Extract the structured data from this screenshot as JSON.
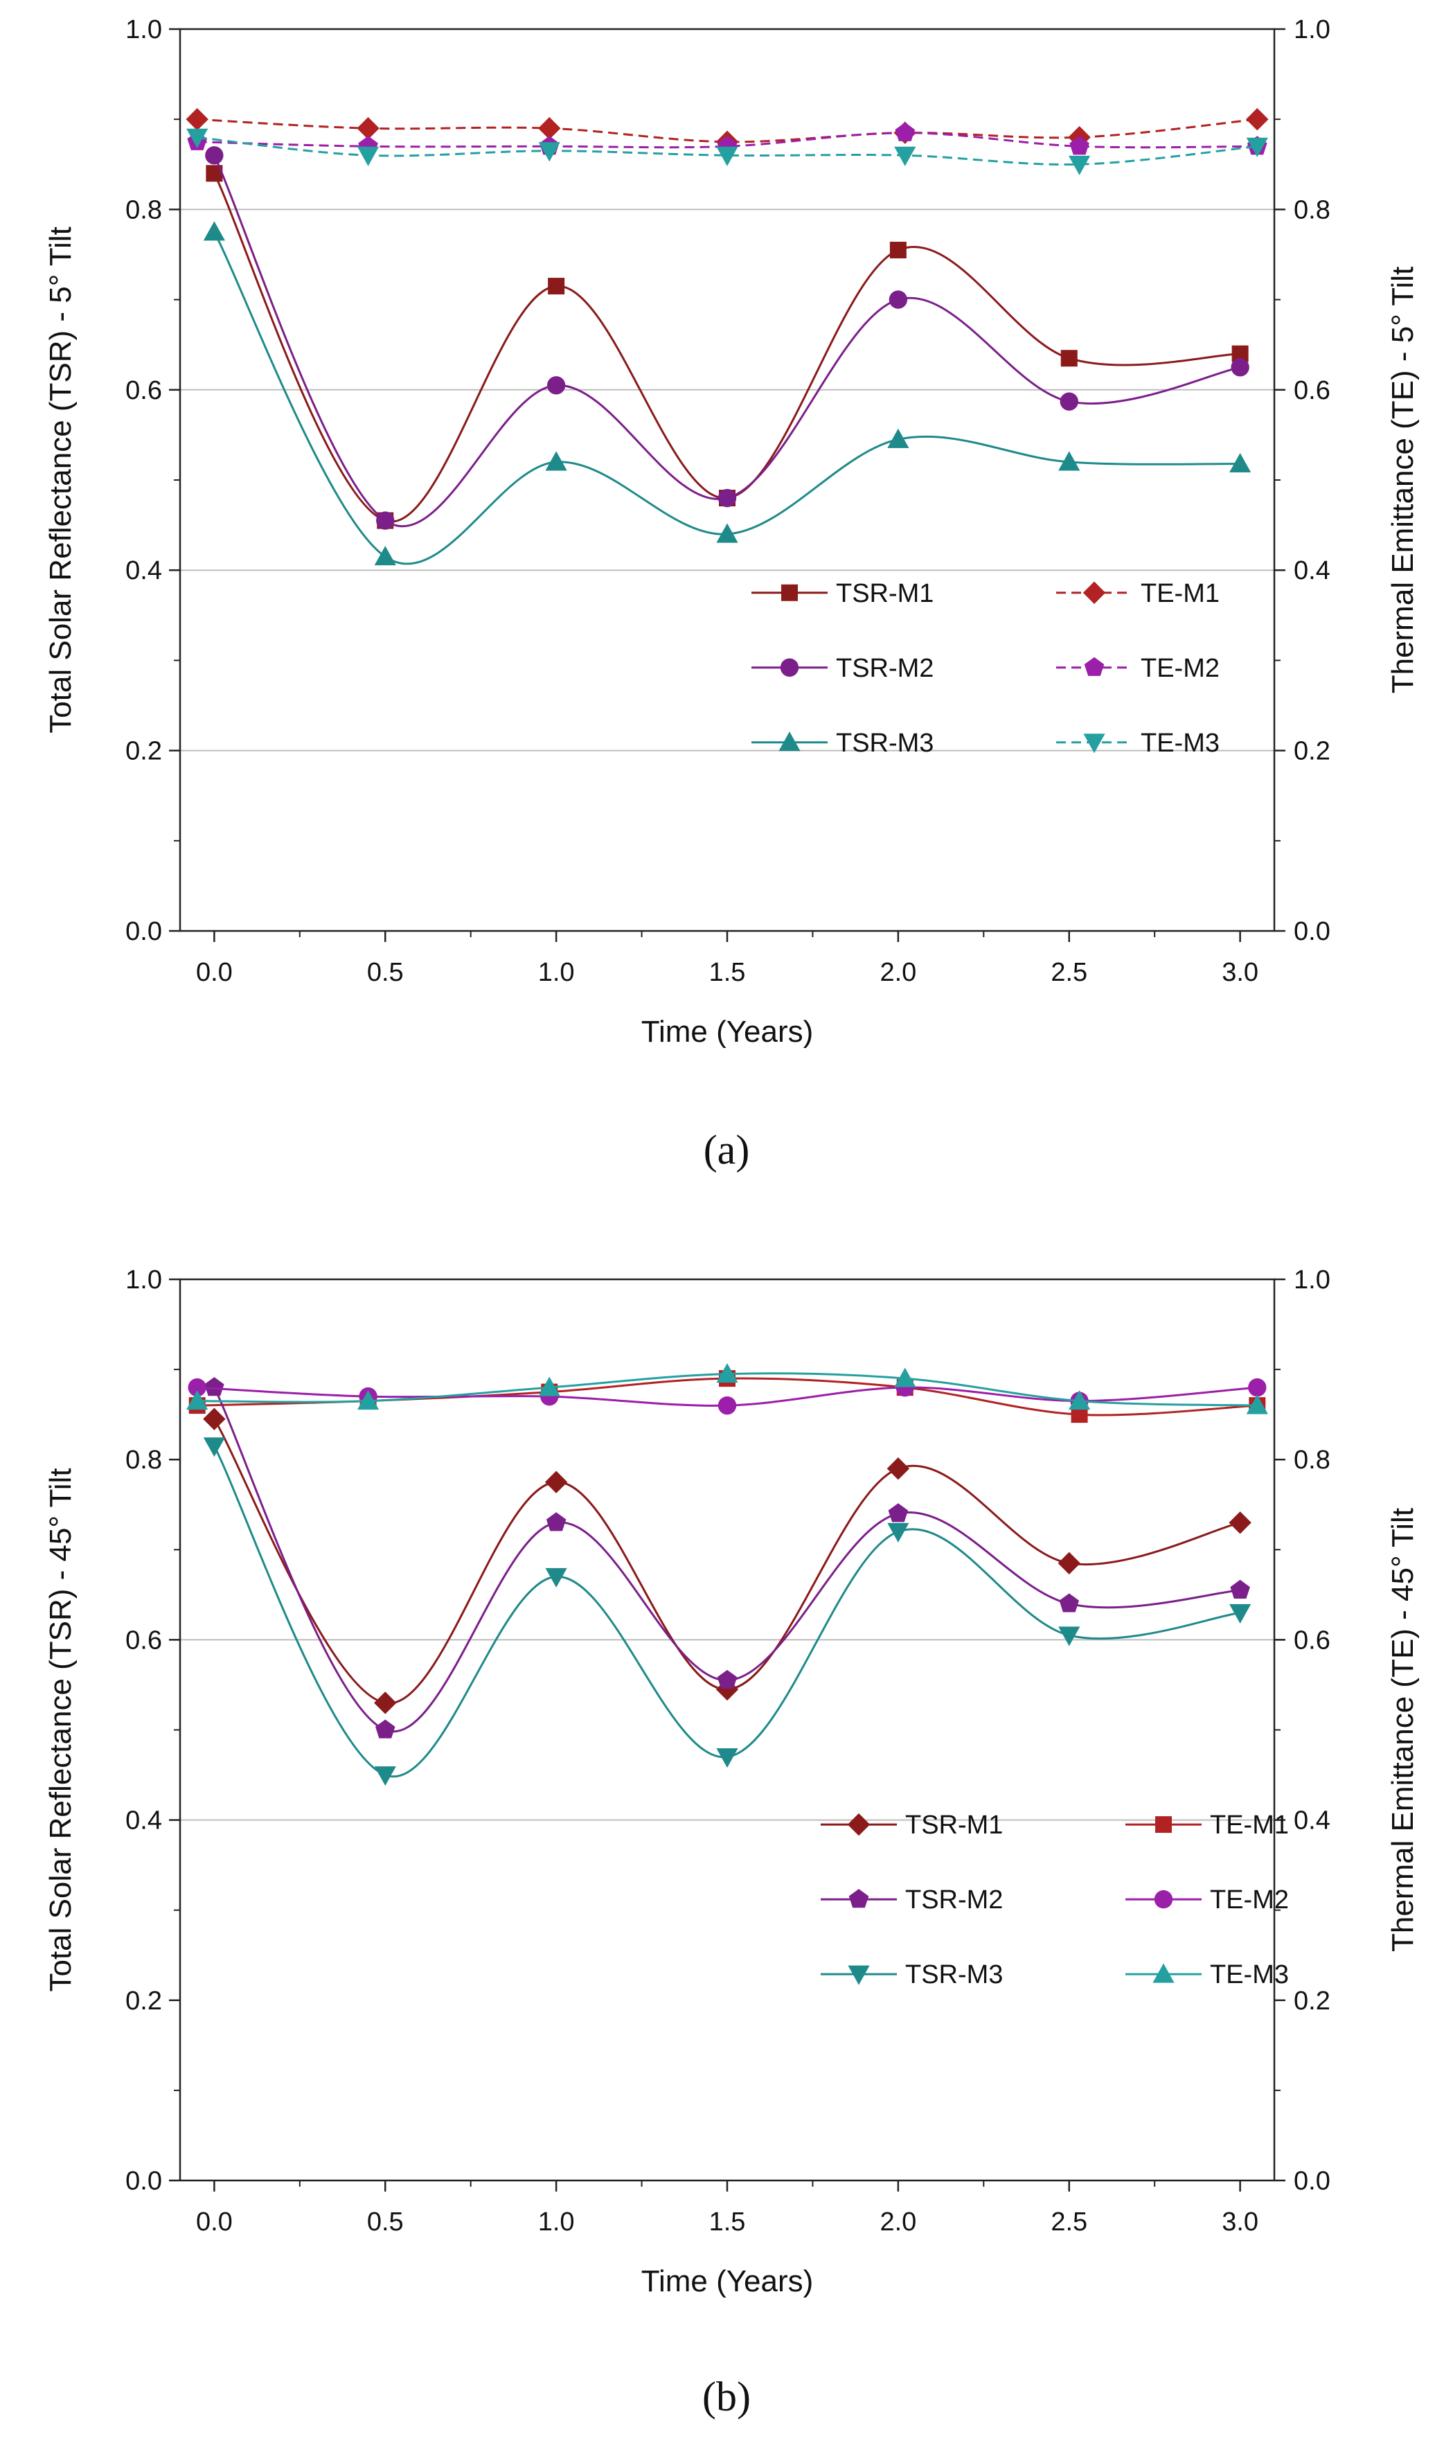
{
  "chart_data": [
    {
      "type": "line",
      "panel_label": "(a)",
      "xlabel": "Time (Years)",
      "ylabel_left": "Total Solar Reflectance (TSR) - 5° Tilt",
      "ylabel_right": "Thermal Emittance (TE) - 5° Tilt",
      "xlim": [
        -0.1,
        3.1
      ],
      "ylim": [
        0.0,
        1.0
      ],
      "xticks": [
        "0.0",
        "0.5",
        "1.0",
        "1.5",
        "2.0",
        "2.5",
        "3.0"
      ],
      "yticks": [
        "0.0",
        "0.2",
        "0.4",
        "0.6",
        "0.8",
        "1.0"
      ],
      "gridlines_y": [
        0.2,
        0.4,
        0.6,
        0.8
      ],
      "legend_position": "center-right",
      "series": [
        {
          "name": "TSR-M1",
          "color": "#8B1A1A",
          "marker": "square",
          "dashed": false,
          "x": [
            0.0,
            0.5,
            1.0,
            1.5,
            2.0,
            2.5,
            3.0
          ],
          "y": [
            0.84,
            0.455,
            0.715,
            0.48,
            0.755,
            0.635,
            0.64
          ]
        },
        {
          "name": "TE-M1",
          "color": "#B22222",
          "marker": "diamond",
          "dashed": true,
          "x": [
            -0.05,
            0.45,
            0.98,
            1.5,
            2.02,
            2.53,
            3.05
          ],
          "y": [
            0.9,
            0.89,
            0.89,
            0.875,
            0.885,
            0.88,
            0.9
          ]
        },
        {
          "name": "TSR-M2",
          "color": "#7B1F8A",
          "marker": "circle",
          "dashed": false,
          "x": [
            0.0,
            0.5,
            1.0,
            1.5,
            2.0,
            2.5,
            3.0
          ],
          "y": [
            0.86,
            0.455,
            0.605,
            0.48,
            0.7,
            0.587,
            0.625
          ]
        },
        {
          "name": "TE-M2",
          "color": "#9B1FA8",
          "marker": "pentagon",
          "dashed": true,
          "x": [
            -0.05,
            0.45,
            0.98,
            1.5,
            2.02,
            2.53,
            3.05
          ],
          "y": [
            0.875,
            0.87,
            0.87,
            0.87,
            0.885,
            0.87,
            0.87
          ]
        },
        {
          "name": "TSR-M3",
          "color": "#1F8A8A",
          "marker": "triangle-up",
          "dashed": false,
          "x": [
            0.0,
            0.5,
            1.0,
            1.5,
            2.0,
            2.5,
            3.0
          ],
          "y": [
            0.775,
            0.415,
            0.52,
            0.44,
            0.545,
            0.52,
            0.518
          ]
        },
        {
          "name": "TE-M3",
          "color": "#25A0A0",
          "marker": "triangle-down",
          "dashed": true,
          "x": [
            -0.05,
            0.45,
            0.98,
            1.5,
            2.02,
            2.53,
            3.05
          ],
          "y": [
            0.88,
            0.86,
            0.865,
            0.86,
            0.86,
            0.85,
            0.87
          ]
        }
      ]
    },
    {
      "type": "line",
      "panel_label": "(b)",
      "xlabel": "Time (Years)",
      "ylabel_left": "Total Solar Reflectance (TSR) - 45° Tilt",
      "ylabel_right": "Thermal Emittance (TE) - 45° Tilt",
      "xlim": [
        -0.1,
        3.1
      ],
      "ylim": [
        0.0,
        1.0
      ],
      "xticks": [
        "0.0",
        "0.5",
        "1.0",
        "1.5",
        "2.0",
        "2.5",
        "3.0"
      ],
      "yticks": [
        "0.0",
        "0.2",
        "0.4",
        "0.6",
        "0.8",
        "1.0"
      ],
      "gridlines_y": [
        0.4,
        0.6
      ],
      "legend_position": "lower-right",
      "series": [
        {
          "name": "TSR-M1",
          "color": "#8B1A1A",
          "marker": "diamond",
          "dashed": false,
          "x": [
            0.0,
            0.5,
            1.0,
            1.5,
            2.0,
            2.5,
            3.0
          ],
          "y": [
            0.845,
            0.53,
            0.775,
            0.545,
            0.79,
            0.685,
            0.73
          ]
        },
        {
          "name": "TE-M1",
          "color": "#B22222",
          "marker": "square",
          "dashed": false,
          "x": [
            -0.05,
            0.45,
            0.98,
            1.5,
            2.02,
            2.53,
            3.05
          ],
          "y": [
            0.86,
            0.865,
            0.875,
            0.89,
            0.88,
            0.85,
            0.86
          ]
        },
        {
          "name": "TSR-M2",
          "color": "#7B1F8A",
          "marker": "pentagon",
          "dashed": false,
          "x": [
            0.0,
            0.5,
            1.0,
            1.5,
            2.0,
            2.5,
            3.0
          ],
          "y": [
            0.88,
            0.5,
            0.73,
            0.555,
            0.74,
            0.64,
            0.655
          ]
        },
        {
          "name": "TE-M2",
          "color": "#9B1FA8",
          "marker": "circle",
          "dashed": false,
          "x": [
            -0.05,
            0.45,
            0.98,
            1.5,
            2.02,
            2.53,
            3.05
          ],
          "y": [
            0.88,
            0.87,
            0.87,
            0.86,
            0.88,
            0.865,
            0.88
          ]
        },
        {
          "name": "TSR-M3",
          "color": "#1F8A8A",
          "marker": "triangle-down",
          "dashed": false,
          "x": [
            0.0,
            0.5,
            1.0,
            1.5,
            2.0,
            2.5,
            3.0
          ],
          "y": [
            0.815,
            0.45,
            0.67,
            0.47,
            0.72,
            0.605,
            0.63
          ]
        },
        {
          "name": "TE-M3",
          "color": "#25A0A0",
          "marker": "triangle-up",
          "dashed": false,
          "x": [
            -0.05,
            0.45,
            0.98,
            1.5,
            2.02,
            2.53,
            3.05
          ],
          "y": [
            0.865,
            0.865,
            0.88,
            0.895,
            0.89,
            0.865,
            0.86
          ]
        }
      ]
    }
  ]
}
